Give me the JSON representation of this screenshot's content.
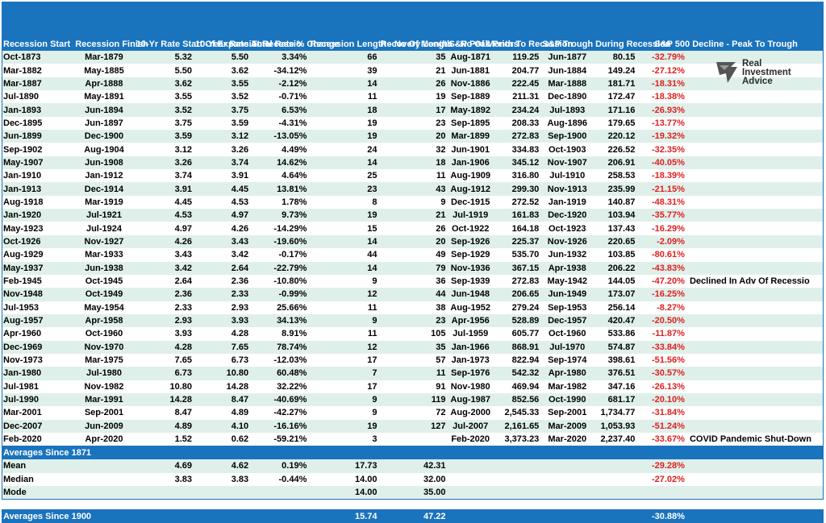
{
  "headers": [
    "Recession Start",
    "Recession Finish",
    "10-Yr Rate Start Of Expansion",
    "10-Year Rate At Recessio",
    "Total Rate % Change",
    "Recession Length - No Of Months",
    "Recovery Length - No Of Months",
    "S&P Peak Prior To Recession",
    "S&P Trough During Recession",
    "S&P 500 Decline - Peak To Trough"
  ],
  "rows": [
    [
      "Oct-1873",
      "Mar-1879",
      "5.32",
      "5.50",
      "3.34%",
      "66",
      "35",
      "Aug-1871",
      "119.25",
      "Jun-1877",
      "80.15",
      "-32.79%",
      ""
    ],
    [
      "Mar-1882",
      "May-1885",
      "5.50",
      "3.62",
      "-34.12%",
      "39",
      "21",
      "Jun-1881",
      "204.77",
      "Jun-1884",
      "149.24",
      "-27.12%",
      ""
    ],
    [
      "Mar-1887",
      "Apr-1888",
      "3.62",
      "3.55",
      "-2.12%",
      "14",
      "26",
      "Nov-1886",
      "222.45",
      "Mar-1888",
      "181.71",
      "-18.31%",
      ""
    ],
    [
      "Jul-1890",
      "May-1891",
      "3.55",
      "3.52",
      "-0.71%",
      "11",
      "19",
      "Sep-1889",
      "211.31",
      "Dec-1890",
      "172.47",
      "-18.38%",
      ""
    ],
    [
      "Jan-1893",
      "Jun-1894",
      "3.52",
      "3.75",
      "6.53%",
      "18",
      "17",
      "May-1892",
      "234.24",
      "Jul-1893",
      "171.16",
      "-26.93%",
      ""
    ],
    [
      "Dec-1895",
      "Jun-1897",
      "3.75",
      "3.59",
      "-4.31%",
      "19",
      "23",
      "Sep-1895",
      "208.33",
      "Aug-1896",
      "179.65",
      "-13.77%",
      ""
    ],
    [
      "Jun-1899",
      "Dec-1900",
      "3.59",
      "3.12",
      "-13.05%",
      "19",
      "20",
      "Mar-1899",
      "272.83",
      "Sep-1900",
      "220.12",
      "-19.32%",
      ""
    ],
    [
      "Sep-1902",
      "Aug-1904",
      "3.12",
      "3.26",
      "4.49%",
      "24",
      "32",
      "Jun-1901",
      "334.83",
      "Oct-1903",
      "226.52",
      "-32.35%",
      ""
    ],
    [
      "May-1907",
      "Jun-1908",
      "3.26",
      "3.74",
      "14.62%",
      "14",
      "18",
      "Jan-1906",
      "345.12",
      "Nov-1907",
      "206.91",
      "-40.05%",
      ""
    ],
    [
      "Jan-1910",
      "Jan-1912",
      "3.74",
      "3.91",
      "4.64%",
      "25",
      "11",
      "Aug-1909",
      "316.80",
      "Jul-1910",
      "258.53",
      "-18.39%",
      ""
    ],
    [
      "Jan-1913",
      "Dec-1914",
      "3.91",
      "4.45",
      "13.81%",
      "23",
      "43",
      "Aug-1912",
      "299.30",
      "Nov-1913",
      "235.99",
      "-21.15%",
      ""
    ],
    [
      "Aug-1918",
      "Mar-1919",
      "4.45",
      "4.53",
      "1.78%",
      "8",
      "9",
      "Dec-1915",
      "272.52",
      "Jan-1919",
      "140.87",
      "-48.31%",
      ""
    ],
    [
      "Jan-1920",
      "Jul-1921",
      "4.53",
      "4.97",
      "9.73%",
      "19",
      "21",
      "Jul-1919",
      "161.83",
      "Dec-1920",
      "103.94",
      "-35.77%",
      ""
    ],
    [
      "May-1923",
      "Jul-1924",
      "4.97",
      "4.26",
      "-14.29%",
      "15",
      "26",
      "Oct-1922",
      "164.18",
      "Oct-1923",
      "137.43",
      "-16.29%",
      ""
    ],
    [
      "Oct-1926",
      "Nov-1927",
      "4.26",
      "3.43",
      "-19.60%",
      "14",
      "20",
      "Sep-1926",
      "225.37",
      "Nov-1926",
      "220.65",
      "-2.09%",
      ""
    ],
    [
      "Aug-1929",
      "Mar-1933",
      "3.43",
      "3.42",
      "-0.17%",
      "44",
      "49",
      "Sep-1929",
      "535.70",
      "Jun-1932",
      "103.85",
      "-80.61%",
      ""
    ],
    [
      "May-1937",
      "Jun-1938",
      "3.42",
      "2.64",
      "-22.79%",
      "14",
      "79",
      "Nov-1936",
      "367.15",
      "Apr-1938",
      "206.22",
      "-43.83%",
      ""
    ],
    [
      "Feb-1945",
      "Oct-1945",
      "2.64",
      "2.36",
      "-10.80%",
      "9",
      "36",
      "Sep-1939",
      "272.83",
      "May-1942",
      "144.05",
      "-47.20%",
      "Declined In Adv Of Recessio"
    ],
    [
      "Nov-1948",
      "Oct-1949",
      "2.36",
      "2.33",
      "-0.99%",
      "12",
      "44",
      "Jun-1948",
      "206.65",
      "Jun-1949",
      "173.07",
      "-16.25%",
      ""
    ],
    [
      "Jul-1953",
      "May-1954",
      "2.33",
      "2.93",
      "25.66%",
      "11",
      "38",
      "Aug-1952",
      "279.24",
      "Sep-1953",
      "256.14",
      "-8.27%",
      ""
    ],
    [
      "Aug-1957",
      "Apr-1958",
      "2.93",
      "3.93",
      "34.13%",
      "9",
      "23",
      "Apr-1956",
      "528.89",
      "Dec-1957",
      "420.47",
      "-20.50%",
      ""
    ],
    [
      "Apr-1960",
      "Oct-1960",
      "3.93",
      "4.28",
      "8.91%",
      "11",
      "105",
      "Jul-1959",
      "605.77",
      "Oct-1960",
      "533.86",
      "-11.87%",
      ""
    ],
    [
      "Dec-1969",
      "Nov-1970",
      "4.28",
      "7.65",
      "78.74%",
      "12",
      "35",
      "Jan-1966",
      "868.91",
      "Jul-1970",
      "574.87",
      "-33.84%",
      ""
    ],
    [
      "Nov-1973",
      "Mar-1975",
      "7.65",
      "6.73",
      "-12.03%",
      "17",
      "57",
      "Jan-1973",
      "822.94",
      "Sep-1974",
      "398.61",
      "-51.56%",
      ""
    ],
    [
      "Jan-1980",
      "Jul-1980",
      "6.73",
      "10.80",
      "60.48%",
      "7",
      "11",
      "Sep-1976",
      "542.32",
      "Apr-1980",
      "376.51",
      "-30.57%",
      ""
    ],
    [
      "Jul-1981",
      "Nov-1982",
      "10.80",
      "14.28",
      "32.22%",
      "17",
      "91",
      "Nov-1980",
      "469.94",
      "Mar-1982",
      "347.16",
      "-26.13%",
      ""
    ],
    [
      "Jul-1990",
      "Mar-1991",
      "14.28",
      "8.47",
      "-40.69%",
      "9",
      "119",
      "Aug-1987",
      "852.56",
      "Oct-1990",
      "681.17",
      "-20.10%",
      ""
    ],
    [
      "Mar-2001",
      "Sep-2001",
      "8.47",
      "4.89",
      "-42.27%",
      "9",
      "72",
      "Aug-2000",
      "2,545.33",
      "Sep-2001",
      "1,734.77",
      "-31.84%",
      ""
    ],
    [
      "Dec-2007",
      "Jun-2009",
      "4.89",
      "4.10",
      "-16.16%",
      "19",
      "127",
      "Jul-2007",
      "2,161.65",
      "Mar-2009",
      "1,053.93",
      "-51.24%",
      ""
    ],
    [
      "Feb-2020",
      "Apr-2020",
      "1.52",
      "0.62",
      "-59.21%",
      "3",
      "",
      "Feb-2020",
      "3,373.23",
      "Mar-2020",
      "2,237.40",
      "-33.67%",
      "COVID Pandemic Shut-Down"
    ]
  ],
  "averages_1871": {
    "title": "Averages Since 1871",
    "mean": {
      "label": "Mean",
      "start": "4.69",
      "at": "4.62",
      "change": "0.19%",
      "length": "17.73",
      "recovery": "42.31",
      "decline": "-29.28%"
    },
    "median": {
      "label": "Median",
      "start": "3.83",
      "at": "3.83",
      "change": "-0.44%",
      "length": "14.00",
      "recovery": "32.00",
      "decline": "-27.02%"
    },
    "mode": {
      "label": "Mode",
      "length": "14.00",
      "recovery": "35.00"
    }
  },
  "averages_1900": {
    "title": "Averages Since 1900",
    "length": "15.74",
    "recovery": "47.22",
    "decline": "-30.88%"
  },
  "logo": {
    "line1": "Real",
    "line2": "Investment",
    "line3": "Advice"
  },
  "colors": {
    "header": "#1a73bd",
    "band": "#dff0ea",
    "negative": "#e01f1f"
  }
}
